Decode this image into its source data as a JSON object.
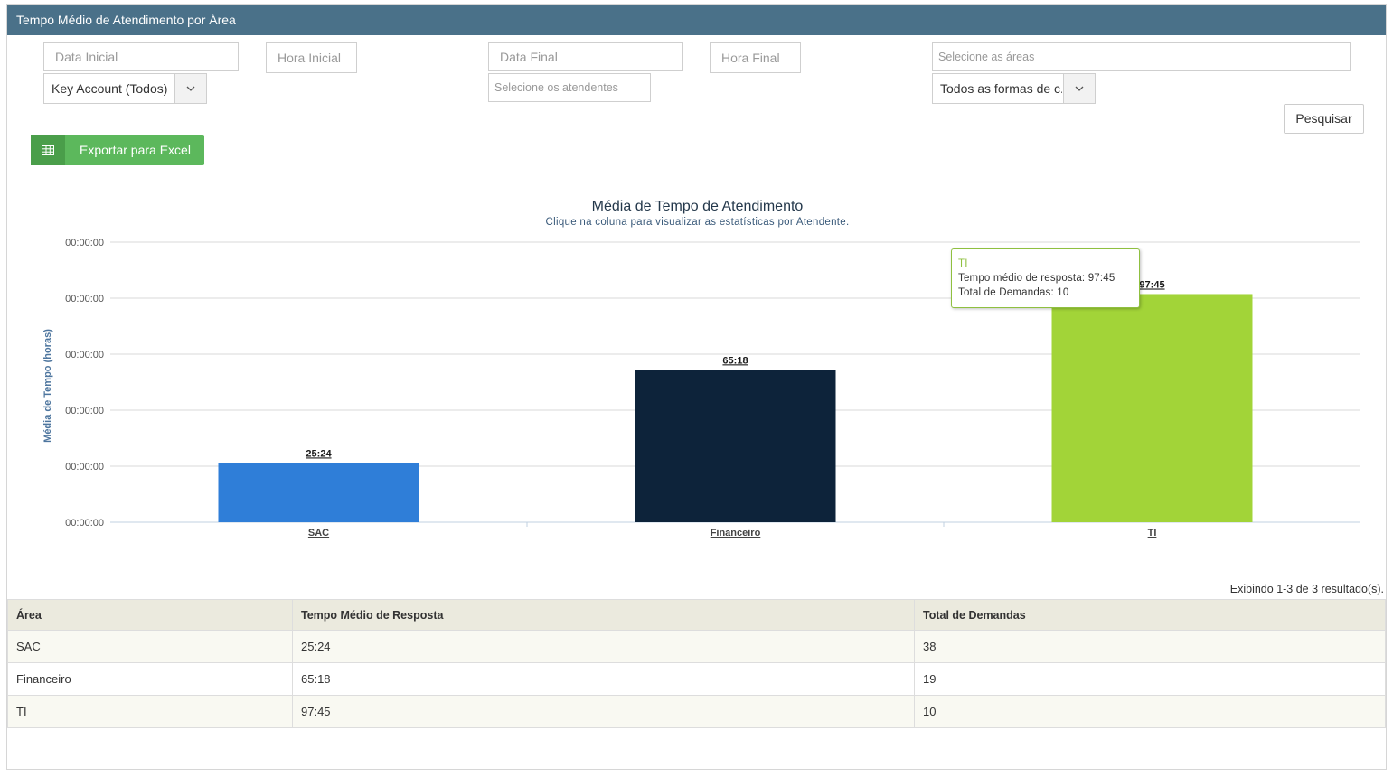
{
  "header": {
    "title": "Tempo Médio de Atendimento por Área"
  },
  "filters": {
    "data_inicial": "Data Inicial",
    "hora_inicial": "Hora Inicial",
    "data_final": "Data Final",
    "hora_final": "Hora Final",
    "areas": "Selecione as áreas",
    "key_account": "Key Account (Todos)",
    "atendentes": "Selecione os atendentes",
    "formas": "Todos as formas de c..."
  },
  "buttons": {
    "pesquisar": "Pesquisar",
    "exportar": "Exportar para Excel"
  },
  "chart_data": {
    "type": "bar",
    "title": "Média de Tempo de Atendimento",
    "subtitle": "Clique na coluna para visualizar as estatísticas por Atendente.",
    "ylabel": "Média de Tempo (horas)",
    "xlabel": "",
    "categories": [
      "SAC",
      "Financeiro",
      "TI"
    ],
    "values": [
      25.4,
      65.3,
      97.75
    ],
    "value_labels": [
      "25:24",
      "65:18",
      "97:45"
    ],
    "colors": [
      "#2f7ed8",
      "#0d233a",
      "#a2d438"
    ],
    "y_tick_labels": [
      "00:00:00",
      "00:00:00",
      "00:00:00",
      "00:00:00",
      "00:00:00",
      "00:00:00"
    ],
    "ylim": [
      0,
      120
    ],
    "grid": true
  },
  "tooltip": {
    "title": "TI",
    "line1": "Tempo médio de resposta: 97:45",
    "line2": "Total de Demandas: 10"
  },
  "table": {
    "results": "Exibindo 1-3 de 3 resultado(s).",
    "headers": [
      "Área",
      "Tempo Médio de Resposta",
      "Total de Demandas"
    ],
    "rows": [
      [
        "SAC",
        "25:24",
        "38"
      ],
      [
        "Financeiro",
        "65:18",
        "19"
      ],
      [
        "TI",
        "97:45",
        "10"
      ]
    ]
  }
}
